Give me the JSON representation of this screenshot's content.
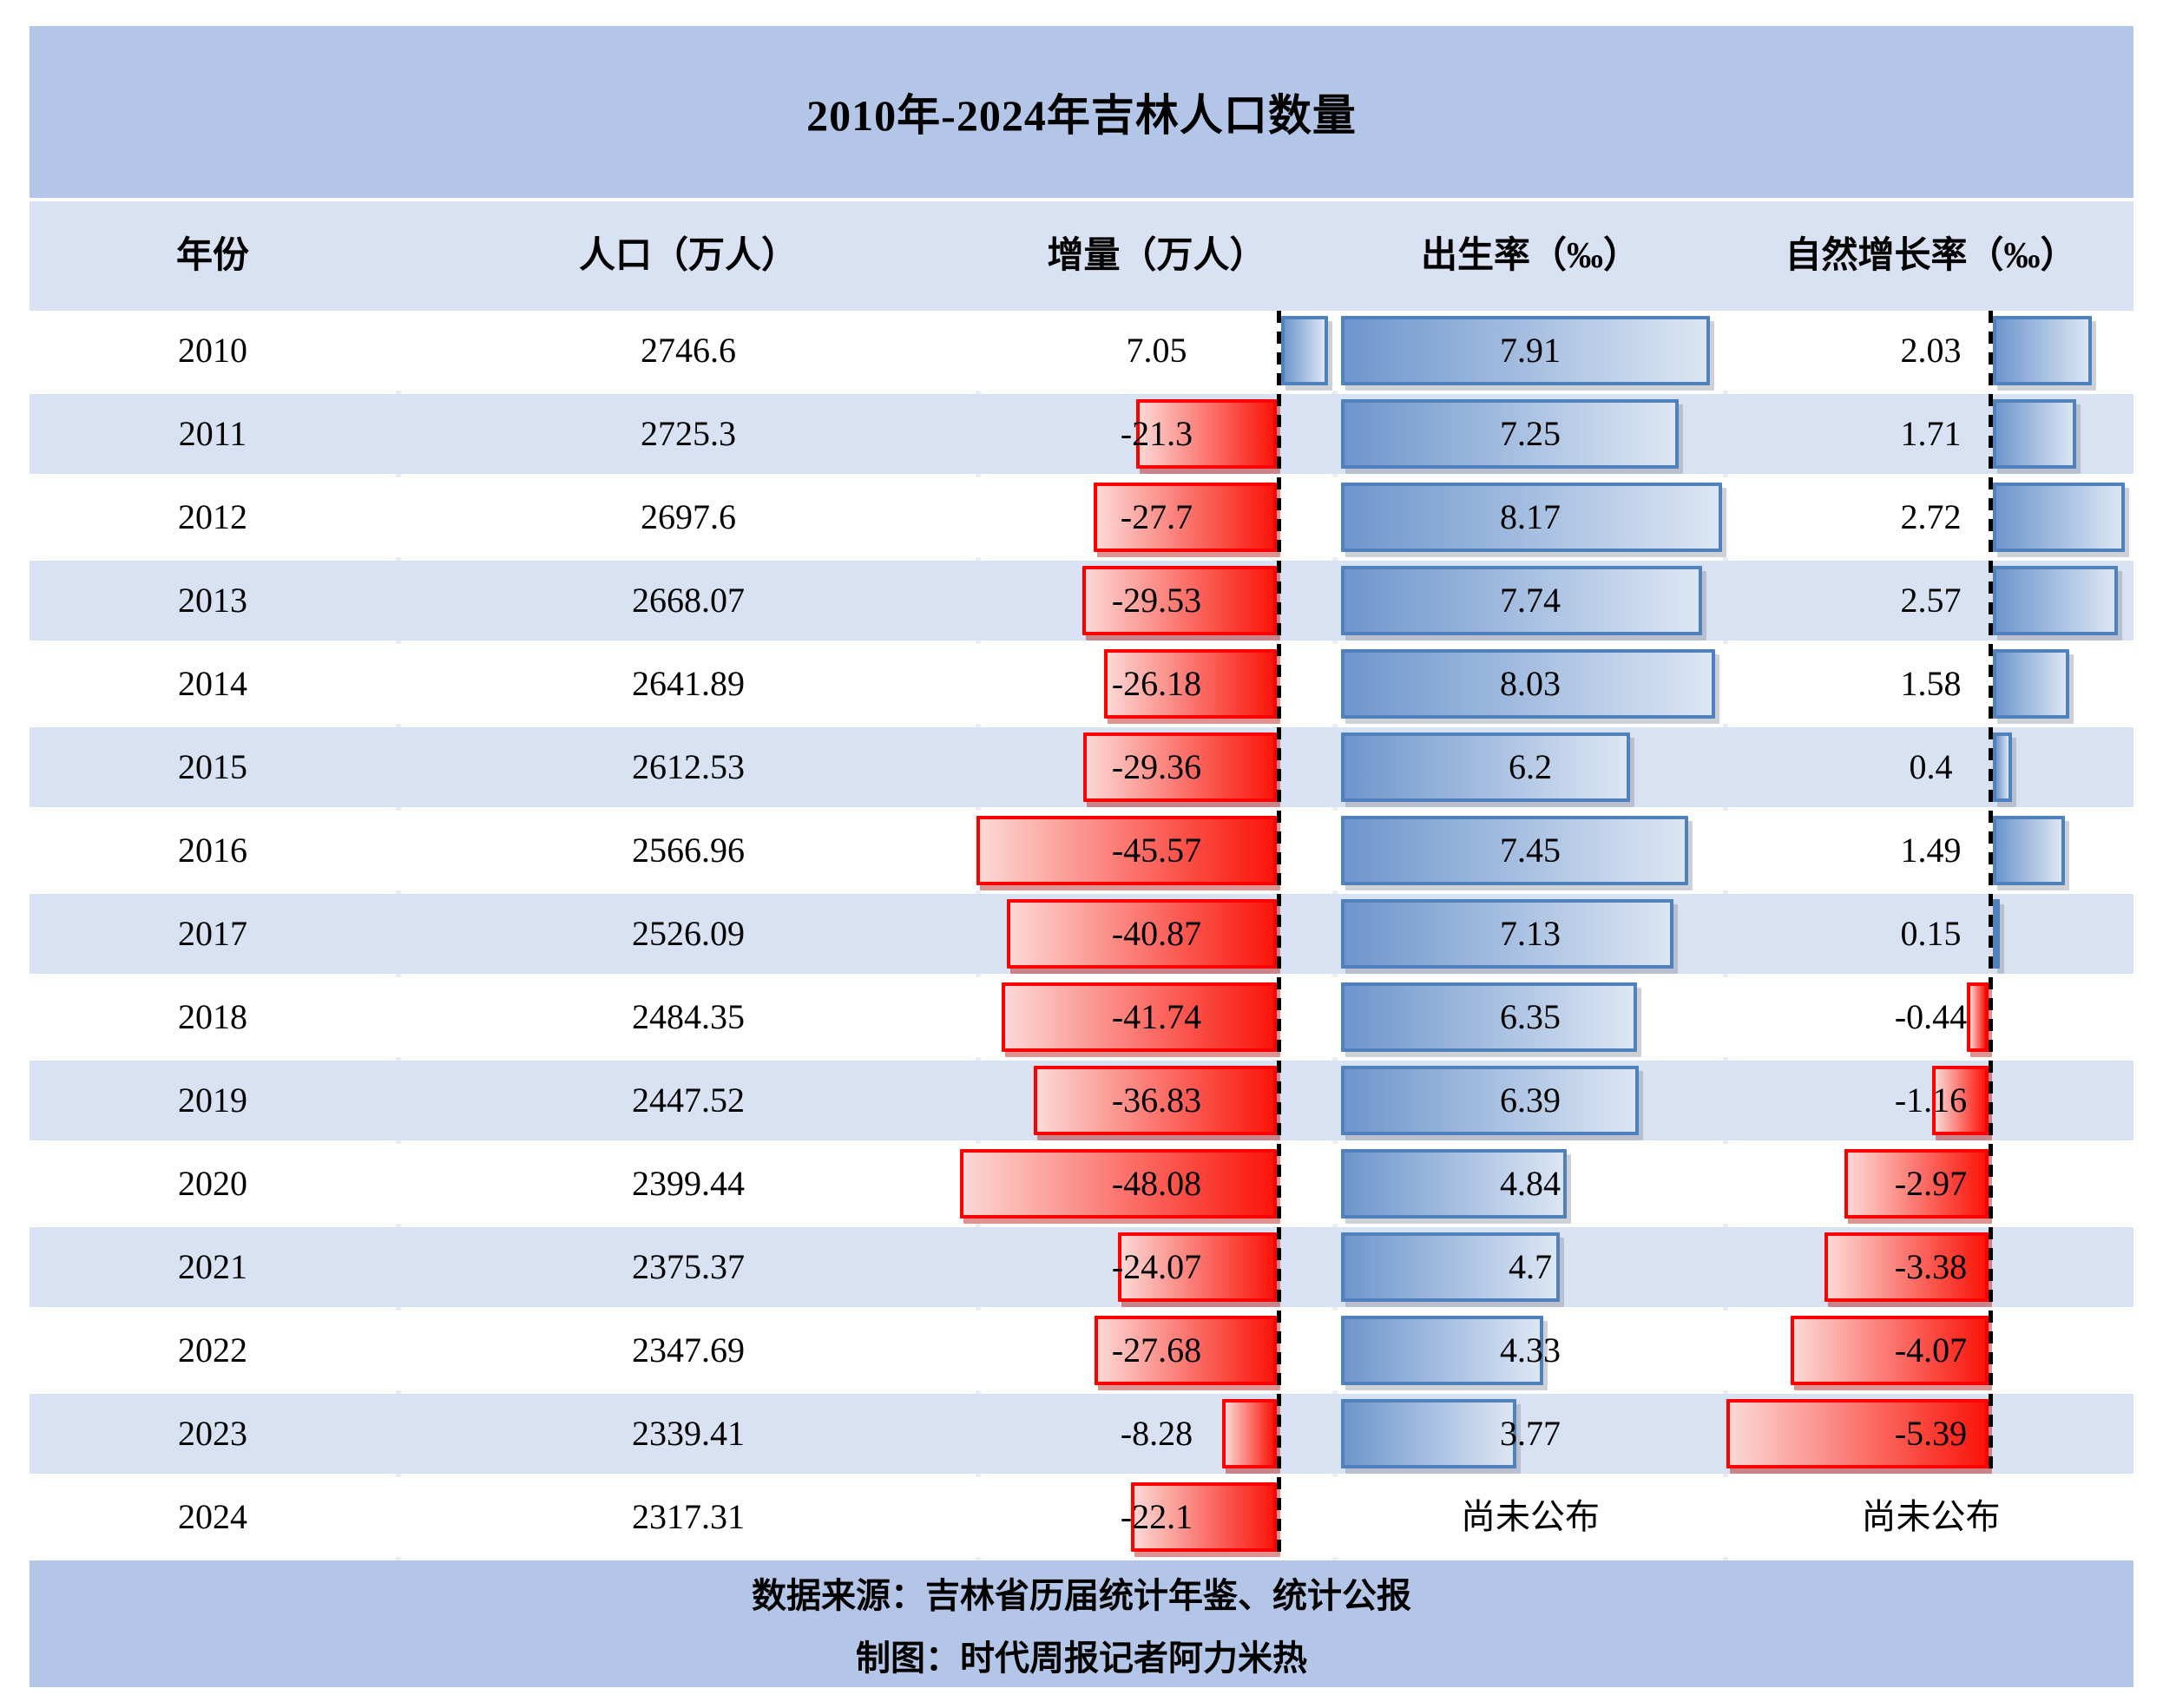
{
  "title": "2010年-2024年吉林人口数量",
  "columns": [
    "年份",
    "人口（万人）",
    "增量（万人）",
    "出生率（‰）",
    "自然增长率（‰）"
  ],
  "not_published_label": "尚未公布",
  "footer": {
    "line1": "数据来源：吉林省历届统计年鉴、统计公报",
    "line2": "制图：时代周报记者阿力米热"
  },
  "colors": {
    "band_blue": "#b4c6e7",
    "row_alt_blue": "#d9e2f3",
    "row_white": "#ffffff",
    "separator": "#ececf0",
    "blue_bar_border": "#4f81bd",
    "blue_bar_grad_start": "#6e96cc",
    "blue_bar_grad_end": "#dce6f4",
    "red_bar_border": "#fe0000",
    "red_bar_grad_start": "#fcd8d5",
    "red_bar_grad_end": "#fa150a",
    "axis_color": "#000000",
    "text_color": "#000000"
  },
  "chart_data": {
    "type": "table",
    "title": "2010年-2024年吉林人口数量",
    "column_headers": [
      "年份",
      "人口（万人）",
      "增量（万人）",
      "出生率（‰）",
      "自然增长率（‰）"
    ],
    "notes": "增量 and 自然增长率 columns have dashed zero axes; negative values drawn as red bars extending left, positive values as blue bars extending right; 出生率 drawn as blue bars from cell left edge",
    "rows": [
      {
        "year": "2010",
        "population": "2746.6",
        "increment": 7.05,
        "birth_rate": 7.91,
        "natural_growth": 2.03
      },
      {
        "year": "2011",
        "population": "2725.3",
        "increment": -21.3,
        "birth_rate": 7.25,
        "natural_growth": 1.71
      },
      {
        "year": "2012",
        "population": "2697.6",
        "increment": -27.7,
        "birth_rate": 8.17,
        "natural_growth": 2.72
      },
      {
        "year": "2013",
        "population": "2668.07",
        "increment": -29.53,
        "birth_rate": 7.74,
        "natural_growth": 2.57
      },
      {
        "year": "2014",
        "population": "2641.89",
        "increment": -26.18,
        "birth_rate": 8.03,
        "natural_growth": 1.58
      },
      {
        "year": "2015",
        "population": "2612.53",
        "increment": -29.36,
        "birth_rate": 6.2,
        "natural_growth": 0.4
      },
      {
        "year": "2016",
        "population": "2566.96",
        "increment": -45.57,
        "birth_rate": 7.45,
        "natural_growth": 1.49
      },
      {
        "year": "2017",
        "population": "2526.09",
        "increment": -40.87,
        "birth_rate": 7.13,
        "natural_growth": 0.15
      },
      {
        "year": "2018",
        "population": "2484.35",
        "increment": -41.74,
        "birth_rate": 6.35,
        "natural_growth": -0.44
      },
      {
        "year": "2019",
        "population": "2447.52",
        "increment": -36.83,
        "birth_rate": 6.39,
        "natural_growth": -1.16
      },
      {
        "year": "2020",
        "population": "2399.44",
        "increment": -48.08,
        "birth_rate": 4.84,
        "natural_growth": -2.97
      },
      {
        "year": "2021",
        "population": "2375.37",
        "increment": -24.07,
        "birth_rate": 4.7,
        "natural_growth": -3.38
      },
      {
        "year": "2022",
        "population": "2347.69",
        "increment": -27.68,
        "birth_rate": 4.33,
        "natural_growth": -4.07
      },
      {
        "year": "2023",
        "population": "2339.41",
        "increment": -8.28,
        "birth_rate": 3.77,
        "natural_growth": -5.39
      },
      {
        "year": "2024",
        "population": "2317.31",
        "increment": -22.1,
        "birth_rate": null,
        "natural_growth": null
      }
    ]
  }
}
